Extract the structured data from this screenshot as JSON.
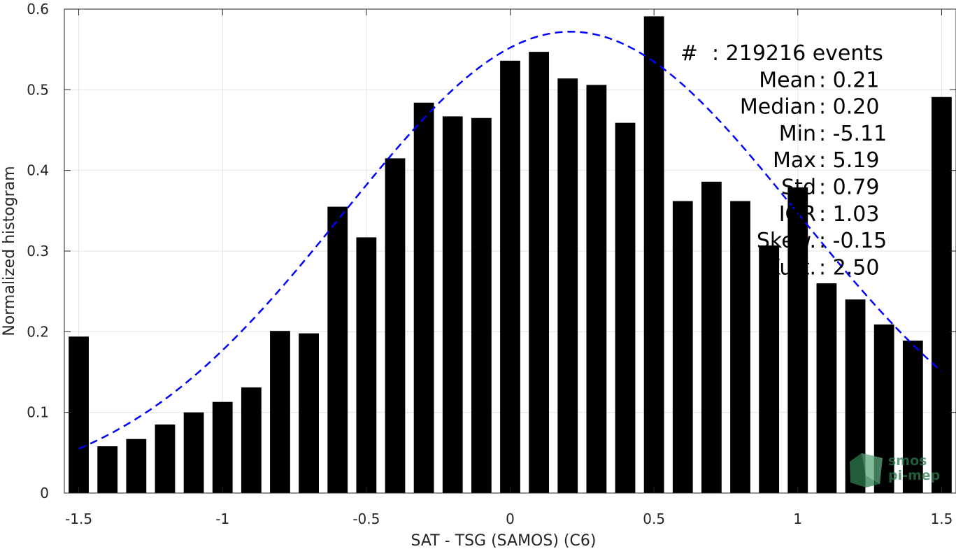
{
  "chart_data": {
    "type": "bar",
    "xlabel": "SAT - TSG (SAMOS) (C6)",
    "ylabel": "Normalized histogram",
    "xlim": [
      -1.55,
      1.55
    ],
    "ylim": [
      0,
      0.6
    ],
    "x_ticks": [
      "-1.5",
      "-1",
      "-0.5",
      "0",
      "0.5",
      "1",
      "1.5"
    ],
    "x_tick_values": [
      -1.5,
      -1,
      -0.5,
      0,
      0.5,
      1,
      1.5
    ],
    "y_ticks": [
      "0",
      "0.1",
      "0.2",
      "0.3",
      "0.4",
      "0.5",
      "0.6"
    ],
    "y_tick_values": [
      0,
      0.1,
      0.2,
      0.3,
      0.4,
      0.5,
      0.6
    ],
    "grid": true,
    "bar_width": 0.07,
    "bar_color": "#000000",
    "series": [
      {
        "x": [
          -1.5,
          -1.4,
          -1.3,
          -1.2,
          -1.1,
          -1.0,
          -0.9,
          -0.8,
          -0.7,
          -0.6,
          -0.5,
          -0.4,
          -0.3,
          -0.2,
          -0.1,
          0.0,
          0.1,
          0.2,
          0.3,
          0.4,
          0.5,
          0.6,
          0.7,
          0.8,
          0.9,
          1.0,
          1.1,
          1.2,
          1.3,
          1.4,
          1.5
        ],
        "values": [
          0.194,
          0.058,
          0.067,
          0.085,
          0.1,
          0.113,
          0.131,
          0.201,
          0.198,
          0.355,
          0.317,
          0.415,
          0.484,
          0.467,
          0.465,
          0.536,
          0.547,
          0.514,
          0.506,
          0.459,
          0.591,
          0.362,
          0.386,
          0.362,
          0.307,
          0.379,
          0.26,
          0.24,
          0.209,
          0.189,
          0.491
        ]
      }
    ],
    "fit_curve": {
      "style": "dashed",
      "color": "#0000ff",
      "mean": 0.21,
      "std": 0.79,
      "peak": 0.572,
      "x_range": [
        -1.5,
        1.5
      ]
    },
    "annotations": [
      {
        "label": "#",
        "value": ": 219216 events"
      },
      {
        "label": "Mean",
        "value": ": 0.21"
      },
      {
        "label": "Median",
        "value": ": 0.20"
      },
      {
        "label": "Min",
        "value": ": -5.11"
      },
      {
        "label": "Max",
        "value": ": 5.19"
      },
      {
        "label": "Std",
        "value": ": 0.79"
      },
      {
        "label": "IQR",
        "value": ": 1.03"
      },
      {
        "label": "Skew.",
        "value": ": -0.15"
      },
      {
        "label": "Kurt.",
        "value": ": 2.50"
      }
    ]
  },
  "watermark": {
    "line1": "smos",
    "line2": "pi-mep",
    "color": "#2e7d4f"
  }
}
